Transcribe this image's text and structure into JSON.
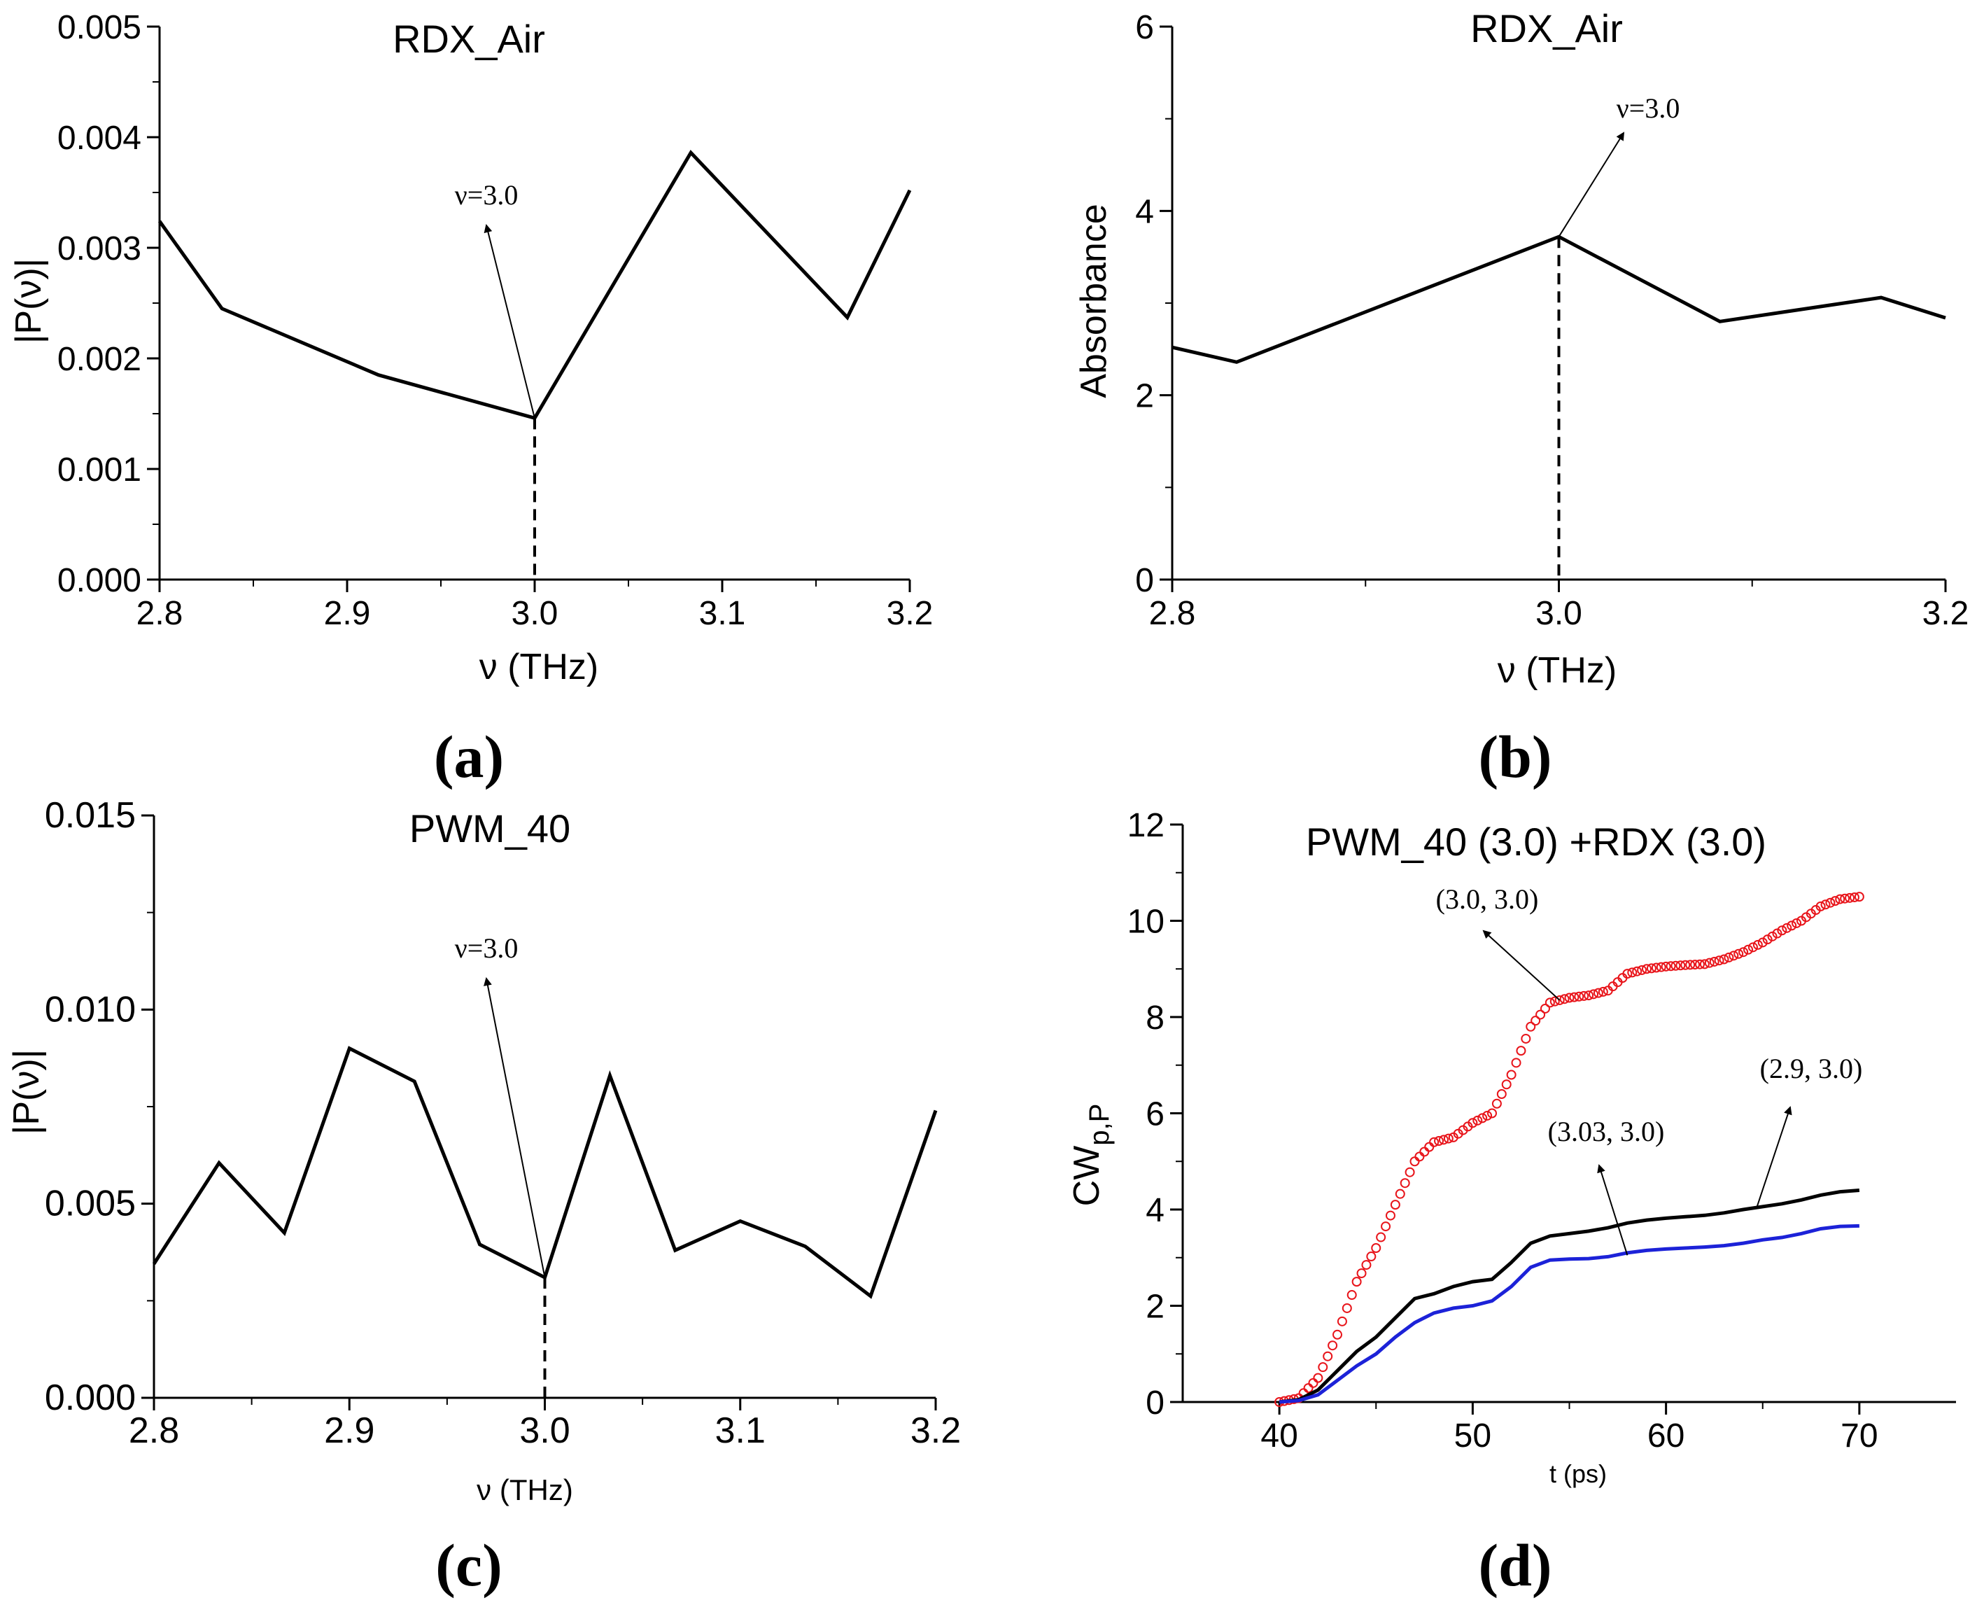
{
  "chart_data": [
    {
      "type": "line",
      "panel": "(a)",
      "title": "RDX_Air",
      "xlabel": "ν (THz)",
      "ylabel": "|P(ν)|",
      "xlim": [
        2.8,
        3.2
      ],
      "ylim": [
        0.0,
        0.005
      ],
      "xticks": [
        2.8,
        2.9,
        3.0,
        3.1,
        3.2
      ],
      "xtick_labels": [
        "2.8",
        "2.9",
        "3.0",
        "3.1",
        "3.2"
      ],
      "yticks": [
        0.0,
        0.001,
        0.002,
        0.003,
        0.004,
        0.005
      ],
      "ytick_labels": [
        "0.000",
        "0.001",
        "0.002",
        "0.003",
        "0.004",
        "0.005"
      ],
      "annotation": "ν=3.0",
      "marker_x": 3.0,
      "series": [
        {
          "name": "RDX_Air",
          "color": "#000000",
          "x": [
            2.8,
            2.8333,
            2.9167,
            3.0,
            3.0833,
            3.1667,
            3.2
          ],
          "y": [
            0.00324,
            0.00245,
            0.00185,
            0.00146,
            0.00386,
            0.00237,
            0.00352
          ]
        }
      ]
    },
    {
      "type": "line",
      "panel": "(b)",
      "title": "RDX_Air",
      "xlabel": "ν (THz)",
      "ylabel": "Absorbance",
      "xlim": [
        2.8,
        3.2
      ],
      "ylim": [
        0,
        6
      ],
      "xticks": [
        2.8,
        3.0,
        3.2
      ],
      "xtick_labels": [
        "2.8",
        "3.0",
        "3.2"
      ],
      "yticks": [
        0,
        2,
        4,
        6
      ],
      "ytick_labels": [
        "0",
        "2",
        "4",
        "6"
      ],
      "annotation": "ν=3.0",
      "marker_x": 3.0,
      "series": [
        {
          "name": "RDX_Air",
          "color": "#000000",
          "x": [
            2.8,
            2.8333,
            3.0,
            3.0833,
            3.1667,
            3.2
          ],
          "y": [
            2.52,
            2.36,
            3.72,
            2.8,
            3.06,
            2.84
          ]
        }
      ]
    },
    {
      "type": "line",
      "panel": "(c)",
      "title": "PWM_40",
      "xlabel": "ν (THz)",
      "ylabel": "|P(ν)|",
      "xlim": [
        2.8,
        3.2
      ],
      "ylim": [
        0.0,
        0.015
      ],
      "xticks": [
        2.8,
        2.9,
        3.0,
        3.1,
        3.2
      ],
      "xtick_labels": [
        "2.8",
        "2.9",
        "3.0",
        "3.1",
        "3.2"
      ],
      "yticks": [
        0.0,
        0.005,
        0.01,
        0.015
      ],
      "ytick_labels": [
        "0.000",
        "0.005",
        "0.010",
        "0.015"
      ],
      "annotation": "ν=3.0",
      "marker_x": 3.0,
      "series": [
        {
          "name": "PWM_40",
          "color": "#000000",
          "x": [
            2.8,
            2.8333,
            2.8667,
            2.9,
            2.9333,
            2.9667,
            3.0,
            3.0333,
            3.0667,
            3.1,
            3.1333,
            3.1667,
            3.2
          ],
          "y": [
            0.00345,
            0.00605,
            0.00425,
            0.009,
            0.00815,
            0.00395,
            0.0031,
            0.0083,
            0.0038,
            0.00455,
            0.0039,
            0.00262,
            0.0074
          ]
        }
      ]
    },
    {
      "type": "line",
      "panel": "(d)",
      "title": "PWM_40 (3.0)  +RDX (3.0)",
      "xlabel": "t (ps)",
      "ylabel": "CW",
      "ylabel_sub": "p,P",
      "xlim": [
        35,
        75
      ],
      "ylim": [
        0,
        12
      ],
      "xticks": [
        40,
        50,
        60,
        70
      ],
      "xtick_labels": [
        "40",
        "50",
        "60",
        "70"
      ],
      "yticks": [
        0,
        2,
        4,
        6,
        8,
        10,
        12
      ],
      "ytick_labels": [
        "0",
        "2",
        "4",
        "6",
        "8",
        "10",
        "12"
      ],
      "series": [
        {
          "name": "(3.0, 3.0)",
          "color": "#e8141a",
          "style": "circles",
          "x": [
            40,
            41,
            42,
            43,
            44,
            45,
            46,
            47,
            48,
            49,
            50,
            51,
            52,
            53,
            54,
            55,
            56,
            57,
            58,
            59,
            60,
            61,
            62,
            63,
            64,
            65,
            66,
            67,
            68,
            69,
            70
          ],
          "y": [
            0.0,
            0.08,
            0.5,
            1.4,
            2.5,
            3.2,
            4.1,
            5.0,
            5.4,
            5.5,
            5.8,
            6.0,
            6.8,
            7.8,
            8.3,
            8.4,
            8.45,
            8.55,
            8.9,
            9.0,
            9.05,
            9.08,
            9.1,
            9.2,
            9.35,
            9.55,
            9.8,
            10.0,
            10.3,
            10.45,
            10.5
          ]
        },
        {
          "name": "(2.9, 3.0)",
          "color": "#000000",
          "style": "line",
          "x": [
            40,
            41,
            42,
            43,
            44,
            45,
            46,
            47,
            48,
            49,
            50,
            51,
            52,
            53,
            54,
            55,
            56,
            57,
            58,
            59,
            60,
            61,
            62,
            63,
            64,
            65,
            66,
            67,
            68,
            69,
            70
          ],
          "y": [
            0.0,
            0.05,
            0.25,
            0.65,
            1.05,
            1.35,
            1.75,
            2.15,
            2.25,
            2.4,
            2.5,
            2.55,
            2.9,
            3.3,
            3.45,
            3.5,
            3.55,
            3.62,
            3.72,
            3.78,
            3.82,
            3.85,
            3.88,
            3.93,
            4.0,
            4.06,
            4.12,
            4.2,
            4.3,
            4.37,
            4.4
          ]
        },
        {
          "name": "(3.03, 3.0)",
          "color": "#1c22d8",
          "style": "line",
          "x": [
            40,
            41,
            42,
            43,
            44,
            45,
            46,
            47,
            48,
            49,
            50,
            51,
            52,
            53,
            54,
            55,
            56,
            57,
            58,
            59,
            60,
            61,
            62,
            63,
            64,
            65,
            66,
            67,
            68,
            69,
            70
          ],
          "y": [
            0.0,
            0.03,
            0.15,
            0.45,
            0.75,
            1.0,
            1.35,
            1.65,
            1.85,
            1.95,
            2.0,
            2.1,
            2.4,
            2.8,
            2.95,
            2.97,
            2.98,
            3.02,
            3.1,
            3.15,
            3.18,
            3.2,
            3.22,
            3.25,
            3.3,
            3.37,
            3.42,
            3.5,
            3.6,
            3.65,
            3.66
          ]
        }
      ],
      "annotations": [
        {
          "text": "(3.0, 3.0)",
          "series": "(3.0, 3.0)"
        },
        {
          "text": "(2.9, 3.0)",
          "series": "(2.9, 3.0)"
        },
        {
          "text": "(3.03, 3.0)",
          "series": "(3.03, 3.0)"
        }
      ]
    }
  ]
}
